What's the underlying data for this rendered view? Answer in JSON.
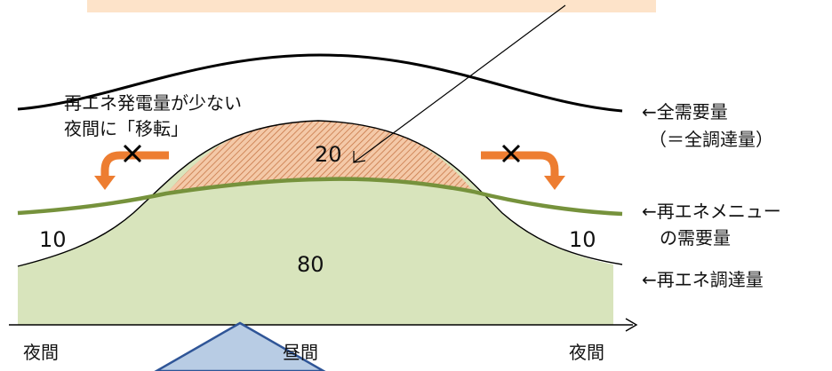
{
  "labels": {
    "shift_note_line1": "再エネ発電量が少ない",
    "shift_note_line2": "夜間に「移転」",
    "total_demand_line1": "←全需要量",
    "total_demand_line2": "（＝全調達量）",
    "renewable_menu_line1": "←再エネメニュー",
    "renewable_menu_line2": "の需要量",
    "renewable_procurement": "←再エネ調達量",
    "axis_night_left": "夜間",
    "axis_daytime": "昼間",
    "axis_night_right": "夜間"
  },
  "values": {
    "night_left": "10",
    "night_right": "10",
    "daytime": "80",
    "excess": "20"
  },
  "colors": {
    "banner": "#fde3c9",
    "green_area": "#d8e4bc",
    "green_line": "#76923c",
    "orange_arrow": "#ed7d31",
    "hatch_fill": "#f4c9a8",
    "hatch_line": "#c87848",
    "callout_fill": "#b8cce4",
    "callout_stroke": "#2f5597",
    "ink": "#000000"
  },
  "icons": {
    "shift_arrows": "curved-arrow-icon",
    "prohibited_marks": "x-mark-icon"
  }
}
